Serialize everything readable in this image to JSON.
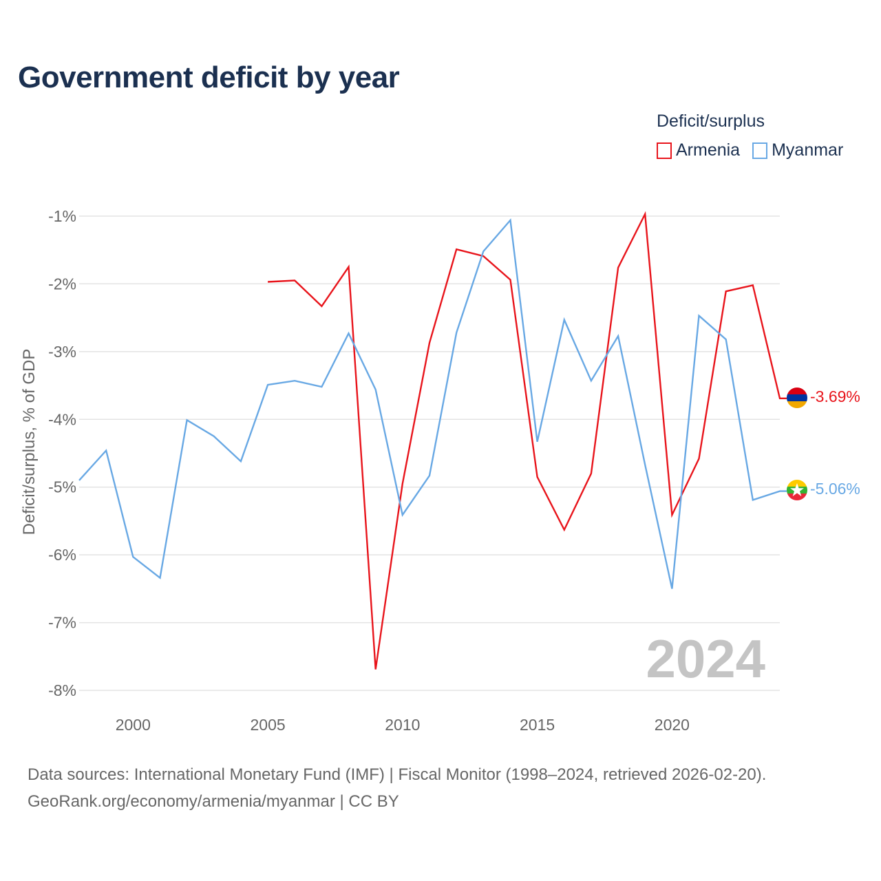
{
  "chart_data": {
    "type": "line",
    "title": "Government deficit by year",
    "legend_title": "Deficit/surplus",
    "ylabel": "Deficit/surplus, % of GDP",
    "xlabel": "",
    "xlim": [
      1998,
      2024
    ],
    "ylim": [
      -8,
      -1
    ],
    "x_ticks": [
      2000,
      2005,
      2010,
      2015,
      2020
    ],
    "x_tick_labels": [
      "2000",
      "2005",
      "2010",
      "2015",
      "2020"
    ],
    "y_ticks": [
      -1,
      -2,
      -3,
      -4,
      -5,
      -6,
      -7,
      -8
    ],
    "y_tick_labels": [
      "-1%",
      "-2%",
      "-3%",
      "-4%",
      "-5%",
      "-6%",
      "-7%",
      "-8%"
    ],
    "year_label": "2024",
    "series": [
      {
        "name": "Armenia",
        "color": "#e8141b",
        "end_label": "-3.69%",
        "flag": "armenia",
        "points": [
          [
            2005,
            -1.97
          ],
          [
            2006,
            -1.95
          ],
          [
            2007,
            -2.33
          ],
          [
            2008,
            -1.75
          ],
          [
            2009,
            -7.69
          ],
          [
            2010,
            -4.95
          ],
          [
            2011,
            -2.87
          ],
          [
            2012,
            -1.49
          ],
          [
            2013,
            -1.59
          ],
          [
            2014,
            -1.94
          ],
          [
            2015,
            -4.85
          ],
          [
            2016,
            -5.63
          ],
          [
            2017,
            -4.8
          ],
          [
            2018,
            -1.76
          ],
          [
            2019,
            -0.97
          ],
          [
            2020,
            -5.41
          ],
          [
            2021,
            -4.58
          ],
          [
            2022,
            -2.11
          ],
          [
            2023,
            -2.02
          ],
          [
            2024,
            -3.69
          ]
        ]
      },
      {
        "name": "Myanmar",
        "color": "#68a8e4",
        "end_label": "-5.06%",
        "flag": "myanmar",
        "points": [
          [
            1998,
            -4.9
          ],
          [
            1999,
            -4.46
          ],
          [
            2000,
            -6.03
          ],
          [
            2001,
            -6.34
          ],
          [
            2002,
            -4.01
          ],
          [
            2003,
            -4.25
          ],
          [
            2004,
            -4.62
          ],
          [
            2005,
            -3.49
          ],
          [
            2006,
            -3.43
          ],
          [
            2007,
            -3.52
          ],
          [
            2008,
            -2.73
          ],
          [
            2009,
            -3.56
          ],
          [
            2010,
            -5.41
          ],
          [
            2011,
            -4.83
          ],
          [
            2012,
            -2.72
          ],
          [
            2013,
            -1.52
          ],
          [
            2014,
            -1.06
          ],
          [
            2015,
            -4.33
          ],
          [
            2016,
            -2.53
          ],
          [
            2017,
            -3.43
          ],
          [
            2018,
            -2.77
          ],
          [
            2019,
            -4.67
          ],
          [
            2020,
            -6.5
          ],
          [
            2021,
            -2.47
          ],
          [
            2022,
            -2.82
          ],
          [
            2023,
            -5.19
          ],
          [
            2024,
            -5.06
          ]
        ]
      }
    ]
  },
  "footer": {
    "source_line": "Data sources: International Monetary Fund (IMF) | Fiscal Monitor (1998–2024, retrieved 2026-02-20).",
    "credit_line": "GeoRank.org/economy/armenia/myanmar | CC BY"
  }
}
